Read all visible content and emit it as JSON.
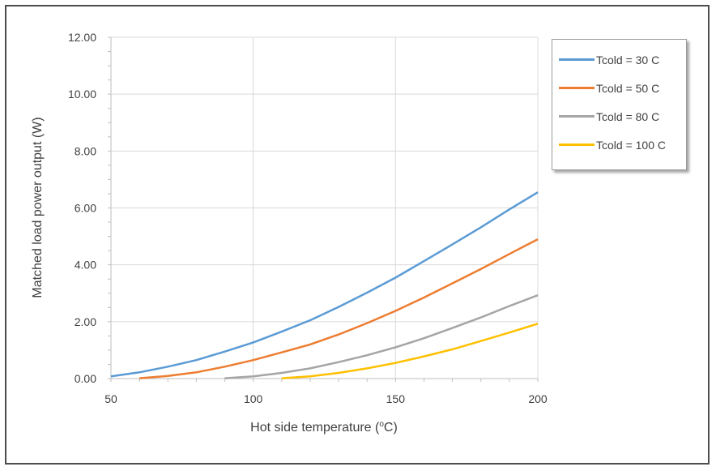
{
  "chart_data": {
    "type": "line",
    "title": "",
    "xlabel": "Hot side temperature (",
    "xlabel_sup": "o",
    "xlabel_tail": "C)",
    "ylabel": "Matched load power output (W)",
    "xlim": [
      50,
      200
    ],
    "ylim": [
      0,
      12
    ],
    "x_ticks": [
      "50",
      "100",
      "150",
      "200"
    ],
    "y_ticks": [
      "0.00",
      "2.00",
      "4.00",
      "6.00",
      "8.00",
      "10.00",
      "12.00"
    ],
    "grid": true,
    "legend_position": "top-right",
    "series": [
      {
        "name": "Tcold = 30 C",
        "color": "#5b9bd5",
        "x": [
          50,
          60,
          70,
          80,
          90,
          100,
          110,
          120,
          130,
          140,
          150,
          160,
          170,
          180,
          190,
          200
        ],
        "y": [
          0.08,
          0.22,
          0.42,
          0.65,
          0.95,
          1.27,
          1.65,
          2.05,
          2.52,
          3.02,
          3.55,
          4.13,
          4.72,
          5.32,
          5.95,
          6.55
        ]
      },
      {
        "name": "Tcold = 50 C",
        "color": "#ed7d31",
        "x": [
          60,
          70,
          80,
          90,
          100,
          110,
          120,
          130,
          140,
          150,
          160,
          170,
          180,
          190,
          200
        ],
        "y": [
          0.01,
          0.09,
          0.22,
          0.42,
          0.65,
          0.92,
          1.2,
          1.55,
          1.95,
          2.38,
          2.85,
          3.35,
          3.85,
          4.38,
          4.9
        ]
      },
      {
        "name": "Tcold = 80 C",
        "color": "#a5a5a5",
        "x": [
          90,
          100,
          110,
          120,
          130,
          140,
          150,
          160,
          170,
          180,
          190,
          200
        ],
        "y": [
          0.01,
          0.08,
          0.2,
          0.36,
          0.58,
          0.82,
          1.1,
          1.42,
          1.78,
          2.15,
          2.55,
          2.93
        ]
      },
      {
        "name": "Tcold = 100 C",
        "color": "#ffc000",
        "x": [
          110,
          120,
          130,
          140,
          150,
          160,
          170,
          180,
          190,
          200
        ],
        "y": [
          0.01,
          0.08,
          0.2,
          0.36,
          0.55,
          0.78,
          1.03,
          1.32,
          1.62,
          1.93
        ]
      }
    ]
  }
}
